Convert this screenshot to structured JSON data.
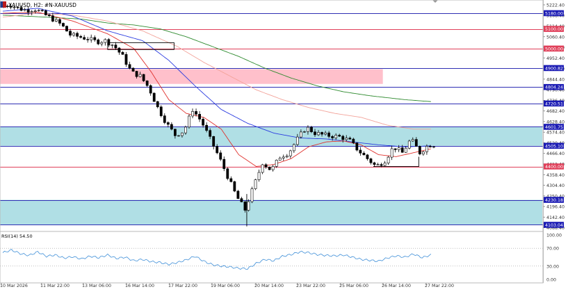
{
  "header": {
    "symbol_label": "XAUUSD, H2:  #N-XAUUSD"
  },
  "price_axis": {
    "ticks": [
      "5222.40",
      "5168.40",
      "5114.40",
      "5060.40",
      "5006.40",
      "4952.40",
      "4898.40",
      "4844.40",
      "4790.40",
      "4736.40",
      "4682.40",
      "4628.40",
      "4574.40",
      "4520.40",
      "4466.40",
      "4412.40",
      "4358.40",
      "4304.40",
      "4250.40",
      "4196.40",
      "4142.40",
      "4088.40"
    ],
    "range": [
      4080,
      5240
    ],
    "current_price": "4505.10"
  },
  "levels": [
    {
      "price": 5180.0,
      "label": "5180.00",
      "color": "#2f2fb4",
      "badge": "#1b1bb4"
    },
    {
      "price": 5100.0,
      "label": "5100.00",
      "color": "#e0405a",
      "badge": "#e0405a"
    },
    {
      "price": 5000.0,
      "label": "5000.00",
      "color": "#e0405a",
      "badge": "#e0405a"
    },
    {
      "price": 4900.82,
      "label": "4900.82",
      "color": "#2f2fb4",
      "badge": "#1b1bb4"
    },
    {
      "price": 4804.24,
      "label": "4804.24",
      "color": "#2f2fb4",
      "badge": "#1b1bb4"
    },
    {
      "price": 4720.51,
      "label": "4720.51",
      "color": "#2f2fb4",
      "badge": "#1b1bb4"
    },
    {
      "price": 4601.75,
      "label": "4601.75",
      "color": "#2f2fb4",
      "badge": "#1b1bb4"
    },
    {
      "price": 4505.1,
      "label": "4505.10",
      "color": "#2f2fb4",
      "badge": "#1b1bb4"
    },
    {
      "price": 4400.0,
      "label": "4400.00",
      "color": "#e0405a",
      "badge": "#e0405a"
    },
    {
      "price": 4230.18,
      "label": "4230.18",
      "color": "#2f2fb4",
      "badge": "#1b1bb4"
    },
    {
      "price": 4103.04,
      "label": "4103.04",
      "color": "#2f2fb4",
      "badge": "#1b1bb4"
    }
  ],
  "zones": [
    {
      "top": 4895,
      "bottom": 4820,
      "start": 0.0,
      "end": 0.706,
      "color": "#ffc0cb"
    },
    {
      "top": 4601.75,
      "bottom": 4505.1,
      "start": 0.0,
      "end": 1.0,
      "color": "#b0dfe5"
    },
    {
      "top": 4230.18,
      "bottom": 4103.04,
      "start": 0.0,
      "end": 1.0,
      "color": "#b0dfe5"
    }
  ],
  "chart_data": {
    "type": "candlestick",
    "symbol": "XAUUSD",
    "timeframe": "H2",
    "time_labels": [
      "10 Mar 2026",
      "11 Mar 22:00",
      "13 Mar 06:00",
      "16 Mar 14:00",
      "17 Mar 22:00",
      "19 Mar 06:00",
      "20 Mar 14:00",
      "23 Mar 22:00",
      "25 Mar 06:00",
      "26 Mar 14:00",
      "27 Mar 22:00"
    ],
    "close_path": [
      [
        0,
        5210
      ],
      [
        5,
        5225
      ],
      [
        10,
        5205
      ],
      [
        15,
        5195
      ],
      [
        20,
        5200
      ],
      [
        25,
        5175
      ],
      [
        30,
        5150
      ],
      [
        35,
        5120
      ],
      [
        40,
        5070
      ],
      [
        45,
        5060
      ],
      [
        50,
        5050
      ],
      [
        55,
        5035
      ],
      [
        60,
        5040
      ],
      [
        65,
        5015
      ],
      [
        70,
        4960
      ],
      [
        75,
        4880
      ],
      [
        80,
        4860
      ],
      [
        85,
        4800
      ],
      [
        90,
        4700
      ],
      [
        95,
        4620
      ],
      [
        100,
        4560
      ],
      [
        105,
        4580
      ],
      [
        110,
        4690
      ],
      [
        115,
        4630
      ],
      [
        120,
        4540
      ],
      [
        125,
        4450
      ],
      [
        130,
        4350
      ],
      [
        135,
        4250
      ],
      [
        140,
        4180
      ],
      [
        145,
        4300
      ],
      [
        150,
        4420
      ],
      [
        155,
        4380
      ],
      [
        160,
        4450
      ],
      [
        165,
        4470
      ],
      [
        170,
        4540
      ],
      [
        175,
        4600
      ],
      [
        180,
        4570
      ],
      [
        185,
        4560
      ],
      [
        190,
        4555
      ],
      [
        195,
        4550
      ],
      [
        200,
        4530
      ],
      [
        205,
        4480
      ],
      [
        210,
        4440
      ],
      [
        215,
        4400
      ],
      [
        220,
        4430
      ],
      [
        225,
        4500
      ],
      [
        230,
        4470
      ],
      [
        235,
        4540
      ],
      [
        240,
        4470
      ],
      [
        245,
        4510
      ]
    ],
    "ema_fast": [
      [
        0,
        5180
      ],
      [
        20,
        5185
      ],
      [
        40,
        5140
      ],
      [
        60,
        5075
      ],
      [
        75,
        5000
      ],
      [
        85,
        4880
      ],
      [
        95,
        4740
      ],
      [
        105,
        4670
      ],
      [
        115,
        4650
      ],
      [
        125,
        4590
      ],
      [
        135,
        4460
      ],
      [
        145,
        4400
      ],
      [
        155,
        4410
      ],
      [
        165,
        4440
      ],
      [
        175,
        4500
      ],
      [
        185,
        4525
      ],
      [
        195,
        4530
      ],
      [
        205,
        4510
      ],
      [
        215,
        4460
      ],
      [
        225,
        4450
      ],
      [
        235,
        4470
      ],
      [
        245,
        4490
      ]
    ],
    "ema_mid": [
      [
        0,
        5190
      ],
      [
        20,
        5205
      ],
      [
        40,
        5165
      ],
      [
        60,
        5090
      ],
      [
        80,
        5040
      ],
      [
        95,
        4940
      ],
      [
        110,
        4810
      ],
      [
        125,
        4690
      ],
      [
        140,
        4620
      ],
      [
        155,
        4570
      ],
      [
        170,
        4545
      ],
      [
        185,
        4540
      ],
      [
        200,
        4525
      ],
      [
        215,
        4510
      ],
      [
        230,
        4500
      ],
      [
        245,
        4505
      ]
    ],
    "ema_slow": [
      [
        0,
        5160
      ],
      [
        20,
        5180
      ],
      [
        40,
        5170
      ],
      [
        60,
        5140
      ],
      [
        80,
        5090
      ],
      [
        100,
        5010
      ],
      [
        115,
        4930
      ],
      [
        130,
        4860
      ],
      [
        145,
        4790
      ],
      [
        160,
        4740
      ],
      [
        175,
        4700
      ],
      [
        190,
        4670
      ],
      [
        205,
        4650
      ],
      [
        220,
        4610
      ],
      [
        235,
        4590
      ],
      [
        245,
        4590
      ]
    ],
    "ema_long": [
      [
        0,
        5170
      ],
      [
        25,
        5160
      ],
      [
        45,
        5150
      ],
      [
        60,
        5130
      ],
      [
        75,
        5120
      ],
      [
        90,
        5100
      ],
      [
        105,
        5060
      ],
      [
        120,
        5010
      ],
      [
        135,
        4960
      ],
      [
        150,
        4900
      ],
      [
        165,
        4850
      ],
      [
        180,
        4810
      ],
      [
        195,
        4780
      ],
      [
        210,
        4760
      ],
      [
        230,
        4740
      ],
      [
        245,
        4730
      ]
    ],
    "consolidation_box": {
      "x_start": 60,
      "x_end": 98,
      "top": 5030,
      "bottom": 4995
    },
    "support_bracket": {
      "x_start": 212,
      "x_end": 238,
      "price": 4400
    }
  },
  "rsi": {
    "label": "RSI(14) 54.50",
    "ticks": [
      "100.00",
      "70.00",
      "30.00",
      "0.00"
    ],
    "levels": [
      70,
      30
    ],
    "values": [
      [
        0,
        60
      ],
      [
        5,
        66
      ],
      [
        10,
        58
      ],
      [
        15,
        54
      ],
      [
        20,
        62
      ],
      [
        25,
        52
      ],
      [
        30,
        55
      ],
      [
        35,
        48
      ],
      [
        40,
        51
      ],
      [
        45,
        46
      ],
      [
        50,
        52
      ],
      [
        55,
        49
      ],
      [
        60,
        55
      ],
      [
        65,
        47
      ],
      [
        70,
        50
      ],
      [
        75,
        42
      ],
      [
        80,
        45
      ],
      [
        85,
        40
      ],
      [
        90,
        38
      ],
      [
        95,
        34
      ],
      [
        100,
        38
      ],
      [
        105,
        44
      ],
      [
        110,
        52
      ],
      [
        115,
        41
      ],
      [
        120,
        33
      ],
      [
        125,
        30
      ],
      [
        130,
        28
      ],
      [
        135,
        25
      ],
      [
        140,
        24
      ],
      [
        145,
        36
      ],
      [
        150,
        45
      ],
      [
        155,
        42
      ],
      [
        160,
        52
      ],
      [
        165,
        56
      ],
      [
        170,
        62
      ],
      [
        175,
        60
      ],
      [
        180,
        56
      ],
      [
        185,
        54
      ],
      [
        190,
        53
      ],
      [
        195,
        55
      ],
      [
        200,
        50
      ],
      [
        205,
        45
      ],
      [
        210,
        43
      ],
      [
        215,
        41
      ],
      [
        220,
        48
      ],
      [
        225,
        53
      ],
      [
        230,
        50
      ],
      [
        235,
        57
      ],
      [
        240,
        49
      ],
      [
        245,
        55
      ]
    ]
  },
  "colors": {
    "up_candle": "#ffffff",
    "down_candle": "#000000",
    "ema_fast": "#e0322e",
    "ema_mid": "#2a3be0",
    "ema_slow": "#f3a39a",
    "ema_long": "#2e8a2e",
    "rsi_line": "#3f8fd8",
    "axis_bg": "#ffffff"
  }
}
